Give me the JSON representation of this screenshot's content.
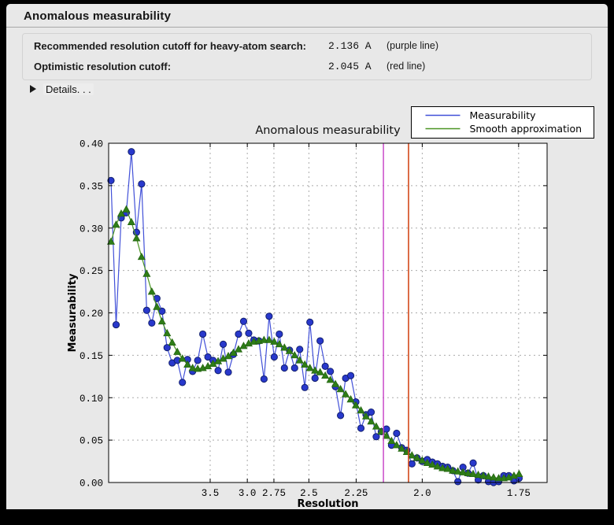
{
  "window": {
    "title": "Anomalous measurability",
    "background": "#e8e8e8",
    "frame_color": "#000000"
  },
  "info_panel": {
    "rows": [
      {
        "label": "Recommended resolution cutoff for heavy-atom search:",
        "value": "2.136 A",
        "note": "(purple line)"
      },
      {
        "label": "Optimistic resolution cutoff:",
        "value": "2.045 A",
        "note": "(red line)"
      }
    ]
  },
  "details": {
    "icon": "triangle-right",
    "label": "Details. . ."
  },
  "chart_data": {
    "type": "line",
    "title": "Anomalous measurability",
    "xlabel": "Resolution",
    "ylabel": "Measurability",
    "ylim": [
      0.0,
      0.4
    ],
    "y_tick_labels": [
      "0.00",
      "0.05",
      "0.10",
      "0.15",
      "0.20",
      "0.25",
      "0.30",
      "0.35",
      "0.40"
    ],
    "x_scale": "inverse_d_squared",
    "x_tick_labels": [
      "3.5",
      "3.0",
      "2.75",
      "2.5",
      "2.25",
      "2.0",
      "1.75"
    ],
    "x_tick_resolution_A": [
      3.5,
      3.0,
      2.75,
      2.5,
      2.25,
      2.0,
      1.75
    ],
    "xlim_1_over_d2": [
      0.001008,
      0.349133
    ],
    "grid": true,
    "grid_color": "#ababab",
    "x_1_over_d2": [
      0.00288,
      0.00693,
      0.01098,
      0.01503,
      0.01908,
      0.02313,
      0.02718,
      0.03123,
      0.03528,
      0.03933,
      0.04338,
      0.04743,
      0.05148,
      0.05553,
      0.05958,
      0.06363,
      0.06768,
      0.07173,
      0.07578,
      0.07983,
      0.08388,
      0.08793,
      0.09198,
      0.09603,
      0.10008,
      0.10413,
      0.10818,
      0.11223,
      0.11628,
      0.12033,
      0.12438,
      0.12843,
      0.13248,
      0.13653,
      0.14058,
      0.14463,
      0.14868,
      0.15273,
      0.15678,
      0.16083,
      0.16488,
      0.16893,
      0.17298,
      0.17703,
      0.18108,
      0.18513,
      0.18918,
      0.19323,
      0.19728,
      0.20133,
      0.20538,
      0.20943,
      0.21348,
      0.21753,
      0.22158,
      0.22563,
      0.22968,
      0.23373,
      0.23778,
      0.24183,
      0.24588,
      0.24993,
      0.25398,
      0.25803,
      0.26208,
      0.26613,
      0.27018,
      0.27423,
      0.27828,
      0.28233,
      0.28638,
      0.29043,
      0.29448,
      0.29853,
      0.30258,
      0.30663,
      0.31068,
      0.31473,
      0.31878,
      0.32283,
      0.32688
    ],
    "series": [
      {
        "name": "Measurability",
        "line_color": "#4150d8",
        "marker": "circle",
        "marker_fill": "#2838cc",
        "marker_edge": "#13206e",
        "values": [
          0.356,
          0.186,
          0.312,
          0.318,
          0.39,
          0.295,
          0.352,
          0.203,
          0.188,
          0.217,
          0.202,
          0.159,
          0.141,
          0.144,
          0.118,
          0.145,
          0.131,
          0.144,
          0.175,
          0.148,
          0.144,
          0.132,
          0.163,
          0.13,
          0.151,
          0.175,
          0.19,
          0.176,
          0.168,
          0.167,
          0.122,
          0.196,
          0.148,
          0.175,
          0.135,
          0.156,
          0.135,
          0.157,
          0.112,
          0.189,
          0.123,
          0.167,
          0.137,
          0.131,
          0.113,
          0.079,
          0.123,
          0.126,
          0.095,
          0.064,
          0.08,
          0.083,
          0.054,
          0.06,
          0.063,
          0.044,
          0.058,
          0.041,
          0.038,
          0.022,
          0.029,
          0.025,
          0.027,
          0.024,
          0.022,
          0.019,
          0.018,
          0.014,
          0.001,
          0.018,
          0.011,
          0.023,
          0.003,
          0.008,
          0.001,
          0.0,
          0.001,
          0.008,
          0.008,
          0.002,
          0.005
        ]
      },
      {
        "name": "Smooth approximation",
        "line_color": "#4a9422",
        "marker": "triangle_up",
        "marker_fill": "#2e7d17",
        "marker_edge": "#256612",
        "values": [
          0.284,
          0.304,
          0.317,
          0.322,
          0.307,
          0.288,
          0.266,
          0.246,
          0.225,
          0.207,
          0.19,
          0.176,
          0.165,
          0.154,
          0.146,
          0.139,
          0.135,
          0.134,
          0.135,
          0.137,
          0.14,
          0.143,
          0.146,
          0.149,
          0.153,
          0.157,
          0.161,
          0.164,
          0.166,
          0.167,
          0.168,
          0.168,
          0.166,
          0.163,
          0.159,
          0.155,
          0.15,
          0.144,
          0.139,
          0.135,
          0.132,
          0.13,
          0.126,
          0.121,
          0.116,
          0.11,
          0.104,
          0.098,
          0.091,
          0.085,
          0.078,
          0.072,
          0.066,
          0.06,
          0.055,
          0.049,
          0.044,
          0.04,
          0.036,
          0.032,
          0.029,
          0.026,
          0.023,
          0.021,
          0.019,
          0.017,
          0.016,
          0.014,
          0.013,
          0.012,
          0.011,
          0.01,
          0.009,
          0.008,
          0.007,
          0.006,
          0.005,
          0.005,
          0.006,
          0.008,
          0.01
        ]
      }
    ],
    "vlines": [
      {
        "name": "purple line",
        "resolution_A": 2.136,
        "x_1_over_d2": 0.21919,
        "color": "#c63ec6",
        "width": 1.4
      },
      {
        "name": "red line",
        "resolution_A": 2.045,
        "x_1_over_d2": 0.23912,
        "color": "#d2471a",
        "width": 1.6
      }
    ],
    "legend": {
      "position": "upper right",
      "entries": [
        "Measurability",
        "Smooth approximation"
      ]
    }
  }
}
